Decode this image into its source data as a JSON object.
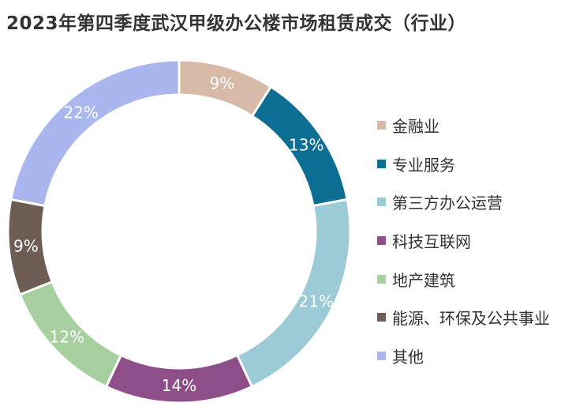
{
  "chart_data": {
    "type": "pie",
    "title": "2023年第四季度武汉甲级办公楼市场租赁成交（行业）",
    "categories": [
      "金融业",
      "专业服务",
      "第三方办公运营",
      "科技互联网",
      "地产建筑",
      "能源、环保及公共事业",
      "其他"
    ],
    "values": [
      9,
      13,
      21,
      14,
      12,
      9,
      22
    ],
    "value_labels": [
      "9%",
      "13%",
      "21%",
      "14%",
      "12%",
      "9%",
      "22%"
    ],
    "colors": [
      "#D6B9A6",
      "#0C6E93",
      "#9CCAD6",
      "#8E4E8A",
      "#A7CF9F",
      "#6D5D55",
      "#A9B7EE"
    ],
    "label_colors": [
      "#ffffff",
      "#ffffff",
      "#ffffff",
      "#ffffff",
      "#ffffff",
      "#ffffff",
      "#ffffff"
    ],
    "legend_position": "right",
    "donut": true
  }
}
